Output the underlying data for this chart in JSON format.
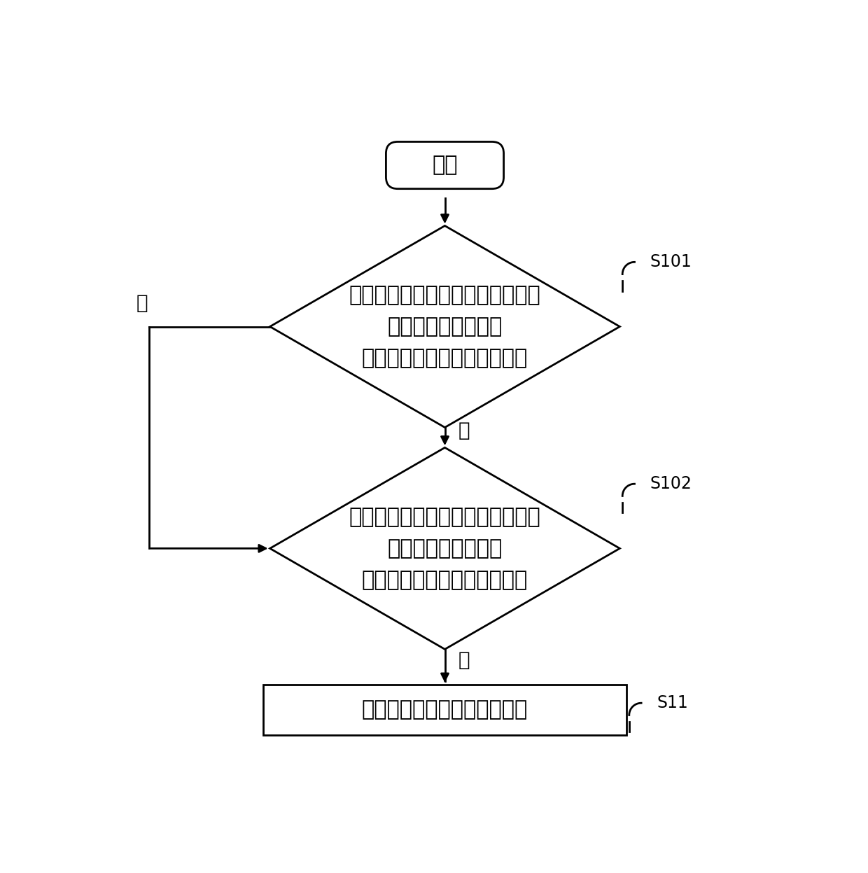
{
  "background_color": "#ffffff",
  "start_text": "开始",
  "diamond1_text": "判断电流互感器是否检测到电磁式\n电压互感器中性点与\n高压阻尼电阻之间的励磁涌流",
  "diamond2_text": "判断电流互感器是否检测到电磁式\n电压互感器中性点与\n高压阻尼电阻之间的励磁涌流",
  "rect_text": "计算出励磁涌流的上升沿斜率",
  "label_s101": "S101",
  "label_s102": "S102",
  "label_s11": "S11",
  "label_yes1": "是",
  "label_yes2": "是",
  "label_no": "否",
  "line_color": "#000000",
  "text_color": "#000000",
  "shape_fill": "#ffffff",
  "shape_edge": "#000000",
  "font_size_main": 22,
  "font_size_label": 20,
  "font_size_step": 17,
  "lw": 2.0
}
